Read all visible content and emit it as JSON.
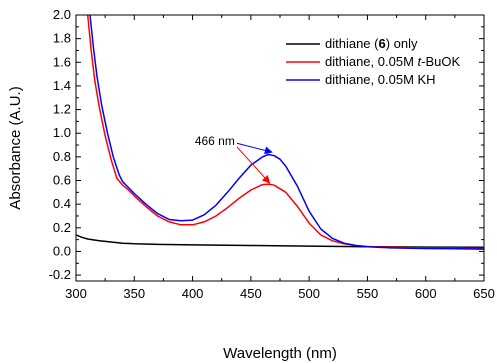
{
  "chart_data": {
    "type": "line",
    "title": "",
    "xlabel": "Wavelength (nm)",
    "ylabel": "Absorbance (A.U.)",
    "xlim": [
      300,
      650
    ],
    "ylim": [
      -0.25,
      2.0
    ],
    "x_ticks": [
      300,
      350,
      400,
      450,
      500,
      550,
      600,
      650
    ],
    "y_ticks": [
      -0.2,
      0.0,
      0.2,
      0.4,
      0.6,
      0.8,
      1.0,
      1.2,
      1.4,
      1.6,
      1.8,
      2.0
    ],
    "x_tick_labels": [
      "300",
      "350",
      "400",
      "450",
      "500",
      "550",
      "600",
      "650"
    ],
    "y_tick_labels": [
      "-0.2",
      "0.0",
      "0.2",
      "0.4",
      "0.6",
      "0.8",
      "1.0",
      "1.2",
      "1.4",
      "1.6",
      "1.8",
      "2.0"
    ],
    "grid": false,
    "legend_position": "top-right",
    "series": [
      {
        "name": "dithiane (6) only",
        "legend_parts": [
          {
            "text": "dithiane (",
            "style": "normal"
          },
          {
            "text": "6",
            "style": "bold"
          },
          {
            "text": ") only",
            "style": "normal"
          }
        ],
        "color": "#000000",
        "x": [
          300,
          305,
          310,
          320,
          330,
          340,
          350,
          370,
          400,
          450,
          500,
          550,
          600,
          650
        ],
        "y": [
          0.14,
          0.12,
          0.105,
          0.09,
          0.08,
          0.07,
          0.065,
          0.06,
          0.055,
          0.05,
          0.045,
          0.04,
          0.037,
          0.035
        ]
      },
      {
        "name": "dithiane, 0.05M t-BuOK",
        "legend_parts": [
          {
            "text": "dithiane, 0.05M ",
            "style": "normal"
          },
          {
            "text": "t",
            "style": "italic"
          },
          {
            "text": "-BuOK",
            "style": "normal"
          }
        ],
        "color": "#ff0000",
        "x": [
          310,
          313,
          316,
          320,
          325,
          330,
          335,
          340,
          345,
          350,
          360,
          370,
          380,
          390,
          400,
          410,
          420,
          430,
          440,
          450,
          460,
          465,
          470,
          480,
          490,
          500,
          510,
          520,
          530,
          540,
          550,
          570,
          600,
          625,
          650
        ],
        "y": [
          2.0,
          1.7,
          1.45,
          1.22,
          0.98,
          0.78,
          0.62,
          0.56,
          0.52,
          0.47,
          0.38,
          0.3,
          0.25,
          0.225,
          0.225,
          0.25,
          0.3,
          0.37,
          0.45,
          0.52,
          0.565,
          0.57,
          0.56,
          0.5,
          0.38,
          0.24,
          0.14,
          0.09,
          0.065,
          0.05,
          0.042,
          0.035,
          0.03,
          0.028,
          0.025
        ]
      },
      {
        "name": "dithiane, 0.05M KH",
        "legend_parts": [
          {
            "text": "dithiane, 0.05M KH",
            "style": "normal"
          }
        ],
        "color": "#0000ff",
        "x": [
          312,
          315,
          318,
          322,
          327,
          332,
          337,
          340,
          345,
          350,
          360,
          370,
          380,
          390,
          400,
          410,
          420,
          430,
          440,
          450,
          460,
          465,
          470,
          475,
          480,
          490,
          500,
          510,
          520,
          530,
          540,
          550,
          570,
          600,
          625,
          650
        ],
        "y": [
          2.0,
          1.72,
          1.48,
          1.24,
          1.0,
          0.8,
          0.65,
          0.59,
          0.54,
          0.49,
          0.4,
          0.32,
          0.27,
          0.26,
          0.265,
          0.31,
          0.39,
          0.5,
          0.62,
          0.73,
          0.8,
          0.82,
          0.81,
          0.78,
          0.72,
          0.55,
          0.34,
          0.19,
          0.11,
          0.07,
          0.05,
          0.04,
          0.03,
          0.025,
          0.022,
          0.02
        ]
      }
    ],
    "annotations": [
      {
        "text": "466 nm",
        "arrows": [
          {
            "from_x": 438,
            "from_y": 0.885,
            "to_x": 466,
            "to_y": 0.58,
            "color": "#ff0000"
          },
          {
            "from_x": 438,
            "from_y": 0.915,
            "to_x": 468,
            "to_y": 0.84,
            "color": "#0000ff"
          }
        ]
      }
    ]
  }
}
